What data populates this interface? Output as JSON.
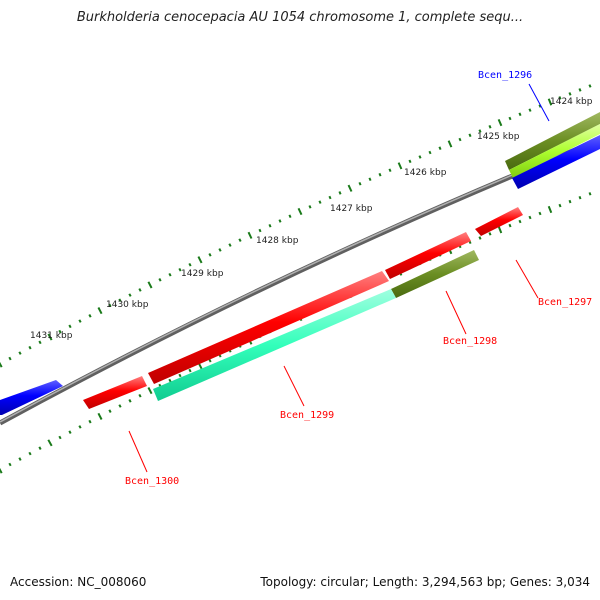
{
  "title": "Burkholderia cenocepacia AU 1054 chromosome 1, complete sequ...",
  "footer": {
    "accession": "Accession: NC_008060",
    "stats": "Topology: circular; Length: 3,294,563 bp; Genes: 3,034"
  },
  "colors": {
    "backbone": "#808080",
    "tick": "#1a7a1a",
    "red": "#ff0000",
    "blue": "#0000ff",
    "olive": "#6b8e23",
    "lime": "#adff2f",
    "aqua": "#33ffbb"
  },
  "scale_labels": [
    "1424 kbp",
    "1425 kbp",
    "1426 kbp",
    "1427 kbp",
    "1428 kbp",
    "1429 kbp",
    "1430 kbp",
    "1431 kbp"
  ],
  "genes": [
    {
      "label": "Bcen_1296",
      "color": "#0000ff"
    },
    {
      "label": "Bcen_1297",
      "color": "#ff0000"
    },
    {
      "label": "Bcen_1298",
      "color": "#ff0000"
    },
    {
      "label": "Bcen_1299",
      "color": "#ff0000"
    },
    {
      "label": "Bcen_1300",
      "color": "#ff0000"
    }
  ]
}
